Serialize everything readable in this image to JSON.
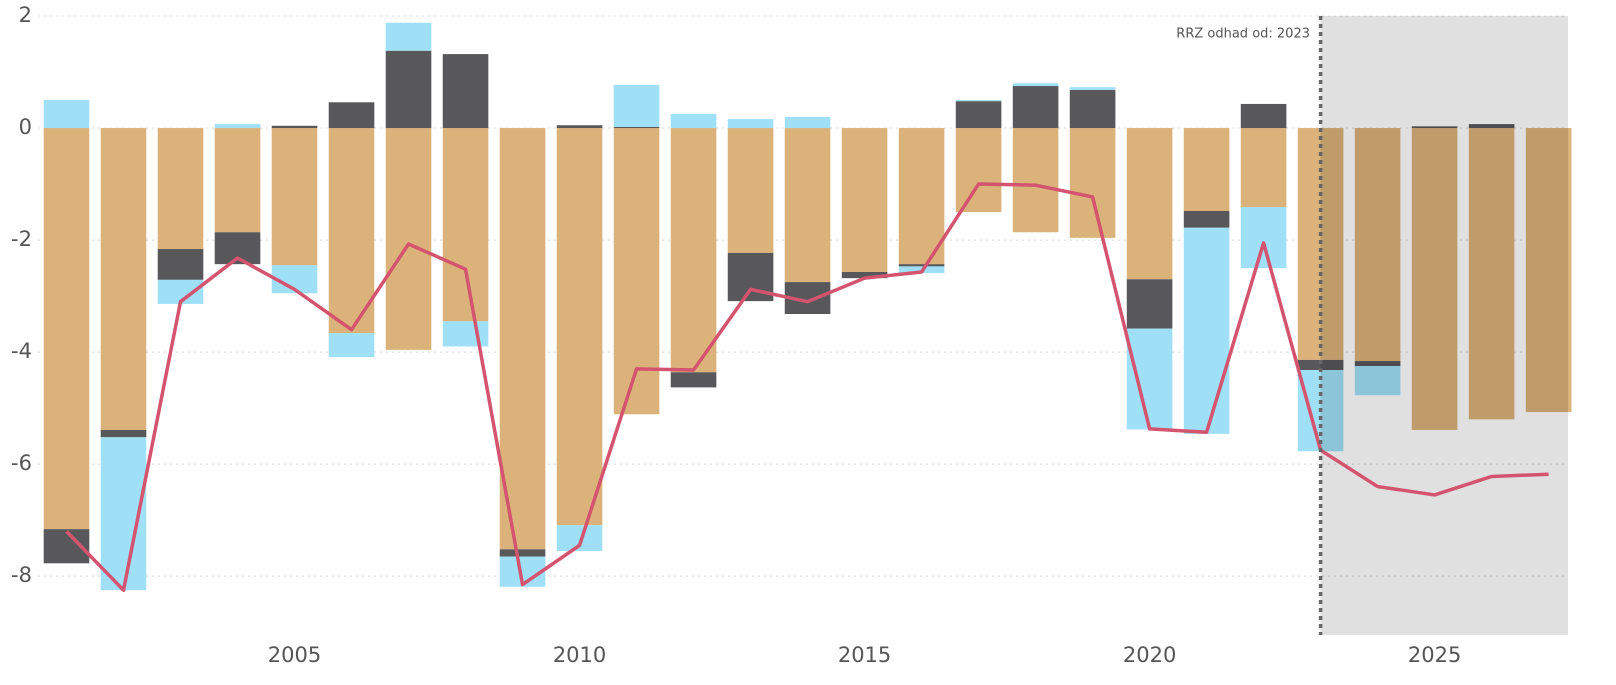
{
  "chart_data": {
    "type": "bar",
    "x": [
      2001,
      2002,
      2003,
      2004,
      2005,
      2006,
      2007,
      2008,
      2009,
      2010,
      2011,
      2012,
      2013,
      2014,
      2015,
      2016,
      2017,
      2018,
      2019,
      2020,
      2021,
      2022,
      2023,
      2024,
      2025,
      2026,
      2027
    ],
    "series": [
      {
        "color": "#dbb27a",
        "values": [
          -7.16,
          -5.39,
          -2.16,
          -1.86,
          -2.45,
          -3.66,
          -3.96,
          -3.45,
          -7.52,
          -7.09,
          -5.11,
          -4.36,
          -2.23,
          -2.75,
          -2.57,
          -2.43,
          -1.5,
          -1.86,
          -1.96,
          -2.7,
          -1.48,
          -1.41,
          -4.14,
          -4.16,
          -5.39,
          -5.2,
          -5.07
        ]
      },
      {
        "color": "#58585a",
        "values": [
          -0.61,
          -0.13,
          -0.55,
          -0.57,
          0.04,
          0.46,
          1.38,
          1.32,
          -0.13,
          0.05,
          0.02,
          -0.27,
          -0.86,
          -0.57,
          -0.11,
          -0.04,
          0.48,
          0.75,
          0.68,
          -0.88,
          -0.3,
          0.43,
          -0.18,
          -0.09,
          0.03,
          0.07,
          0
        ]
      },
      {
        "color": "#a0e0f6",
        "values": [
          0.5,
          -2.73,
          -0.43,
          0.07,
          -0.5,
          -0.43,
          0.5,
          -0.45,
          -0.54,
          -0.46,
          0.75,
          0.25,
          0.16,
          0.2,
          0,
          -0.12,
          0.02,
          0.05,
          0.05,
          -1.8,
          -3.68,
          -1.09,
          -1.45,
          -0.52,
          0,
          0,
          0
        ]
      }
    ],
    "line": {
      "color": "#d4546f",
      "values": [
        -7.2,
        -8.25,
        -3.1,
        -2.32,
        -2.88,
        -3.6,
        -2.07,
        -2.52,
        -8.15,
        -7.45,
        -4.3,
        -4.32,
        -2.88,
        -3.1,
        -2.68,
        -2.57,
        -1.0,
        -1.02,
        -1.23,
        -5.37,
        -5.43,
        -2.05,
        -5.75,
        -6.4,
        -6.55,
        -6.22,
        -6.18
      ]
    },
    "forecast_start": 2023,
    "annotation": "RRZ odhad od: 2023",
    "xlim": [
      2000.5,
      2027.34
    ],
    "xticks": [
      2005,
      2010,
      2015,
      2020,
      2025
    ],
    "ylim": [
      -9.05,
      2
    ],
    "yticks": [
      -8,
      -6,
      -4,
      -2,
      0,
      2
    ],
    "grid": true
  }
}
